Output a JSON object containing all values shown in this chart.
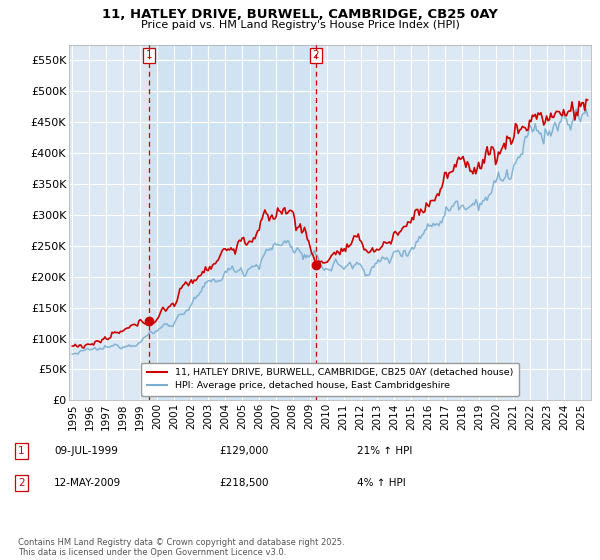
{
  "title": "11, HATLEY DRIVE, BURWELL, CAMBRIDGE, CB25 0AY",
  "subtitle": "Price paid vs. HM Land Registry's House Price Index (HPI)",
  "background_color": "#ffffff",
  "plot_bg_color": "#dce9f5",
  "plot_bg_shaded": "#c8dff0",
  "grid_color": "#ffffff",
  "red_line_color": "#cc0000",
  "blue_line_color": "#7aadcf",
  "ylim": [
    0,
    575000
  ],
  "yticks": [
    0,
    50000,
    100000,
    150000,
    200000,
    250000,
    300000,
    350000,
    400000,
    450000,
    500000,
    550000
  ],
  "ytick_labels": [
    "£0",
    "£50K",
    "£100K",
    "£150K",
    "£200K",
    "£250K",
    "£300K",
    "£350K",
    "£400K",
    "£450K",
    "£500K",
    "£550K"
  ],
  "xmin_year": 1995.0,
  "xmax_year": 2025.5,
  "xtick_years": [
    1995,
    1996,
    1997,
    1998,
    1999,
    2000,
    2001,
    2002,
    2003,
    2004,
    2005,
    2006,
    2007,
    2008,
    2009,
    2010,
    2011,
    2012,
    2013,
    2014,
    2015,
    2016,
    2017,
    2018,
    2019,
    2020,
    2021,
    2022,
    2023,
    2024,
    2025
  ],
  "marker1_year": 1999.52,
  "marker1_value": 129000,
  "marker2_year": 2009.36,
  "marker2_value": 218500,
  "legend_line1": "11, HATLEY DRIVE, BURWELL, CAMBRIDGE, CB25 0AY (detached house)",
  "legend_line2": "HPI: Average price, detached house, East Cambridgeshire",
  "annotation1_date": "09-JUL-1999",
  "annotation1_price": "£129,000",
  "annotation1_hpi": "21% ↑ HPI",
  "annotation2_date": "12-MAY-2009",
  "annotation2_price": "£218,500",
  "annotation2_hpi": "4% ↑ HPI",
  "copyright_text": "Contains HM Land Registry data © Crown copyright and database right 2025.\nThis data is licensed under the Open Government Licence v3.0."
}
